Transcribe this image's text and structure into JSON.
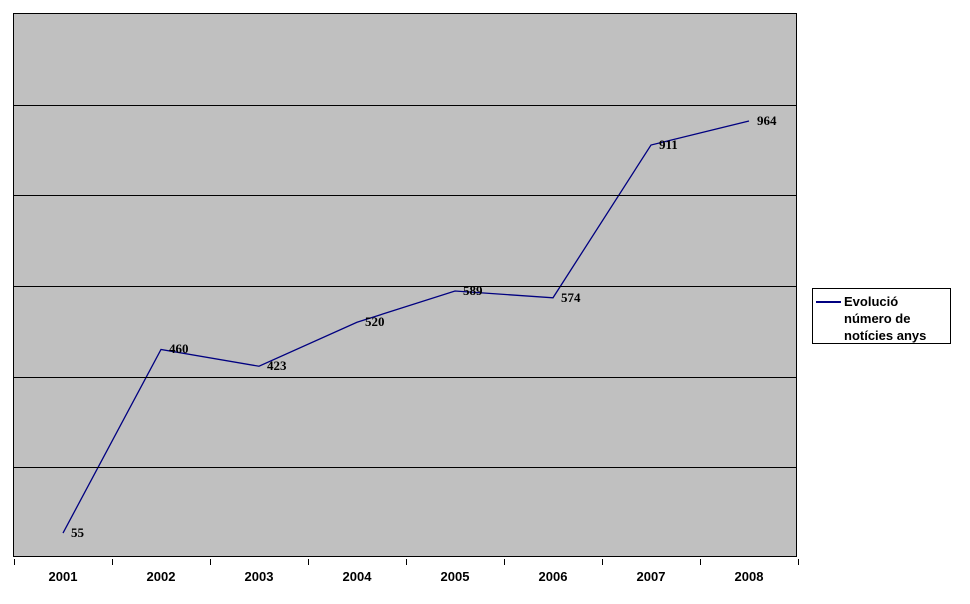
{
  "chart_data": {
    "type": "line",
    "categories": [
      "2001",
      "2002",
      "2003",
      "2004",
      "2005",
      "2006",
      "2007",
      "2008"
    ],
    "series": [
      {
        "name": "Evolució número de notícies anys",
        "values": [
          55,
          460,
          423,
          520,
          589,
          574,
          911,
          964
        ]
      }
    ],
    "title": "",
    "xlabel": "",
    "ylabel": "",
    "ylim": [
      0,
      1200
    ],
    "gridline_step": 200,
    "grid": true,
    "show_data_labels": true,
    "legend_position": "right",
    "line_color": "#000080",
    "plot_bg": "#c0c0c0",
    "gridline_color": "#000000"
  },
  "legend": {
    "label": "Evolució número de notícies anys"
  }
}
